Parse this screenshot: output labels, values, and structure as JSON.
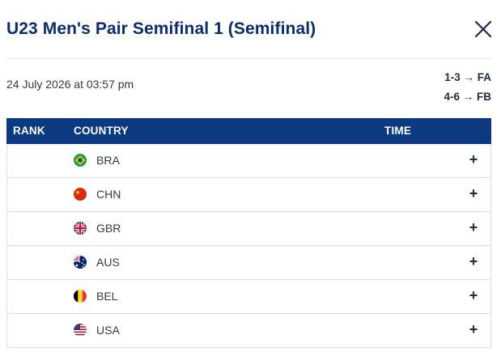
{
  "header": {
    "title": "U23 Men's Pair Semifinal 1 (Semifinal)",
    "close_icon": "close-icon"
  },
  "race": {
    "date": "24 July 2026 at 03:57 pm",
    "progression": [
      "1-3 → FA",
      "4-6 → FB"
    ]
  },
  "table": {
    "columns": {
      "rank": "RANK",
      "country": "COUNTRY",
      "time": "TIME"
    },
    "rows": [
      {
        "country": "BRA",
        "flag": "brazil-flag-icon",
        "expand": "+"
      },
      {
        "country": "CHN",
        "flag": "china-flag-icon",
        "expand": "+"
      },
      {
        "country": "GBR",
        "flag": "great-britain-flag-icon",
        "expand": "+"
      },
      {
        "country": "AUS",
        "flag": "australia-flag-icon",
        "expand": "+"
      },
      {
        "country": "BEL",
        "flag": "belgium-flag-icon",
        "expand": "+"
      },
      {
        "country": "USA",
        "flag": "usa-flag-icon",
        "expand": "+"
      }
    ]
  },
  "colors": {
    "title": "#0b2d6b",
    "header_bg": "#0b3a80",
    "border": "#d9dde2"
  }
}
